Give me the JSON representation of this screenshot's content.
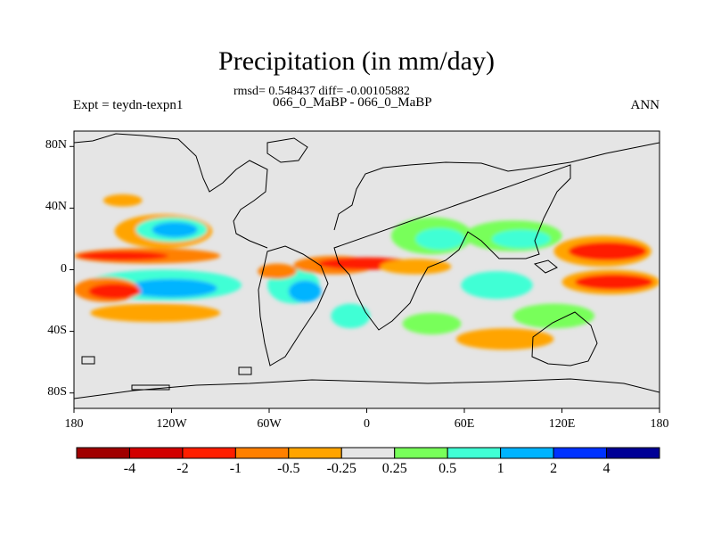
{
  "title": "Precipitation (in mm/day)",
  "subtitle_stats": "rmsd= 0.548437 diff= -0.00105882",
  "subtitle_runs": "066_0_MaBP - 066_0_MaBP",
  "experiment_label": "Expt = teydn-texpn1",
  "season_label": "ANN",
  "map": {
    "projection": "cylindrical-equidistant",
    "lon_range": [
      -180,
      180
    ],
    "lat_range": [
      -90,
      90
    ],
    "lat_ticks": [
      {
        "value": 80,
        "label": "80N"
      },
      {
        "value": 40,
        "label": "40N"
      },
      {
        "value": 0,
        "label": "0"
      },
      {
        "value": -40,
        "label": "40S"
      },
      {
        "value": -80,
        "label": "80S"
      }
    ],
    "lon_ticks": [
      {
        "value": -180,
        "label": "180"
      },
      {
        "value": -120,
        "label": "120W"
      },
      {
        "value": -60,
        "label": "60W"
      },
      {
        "value": 0,
        "label": "0"
      },
      {
        "value": 60,
        "label": "60E"
      },
      {
        "value": 120,
        "label": "120E"
      },
      {
        "value": 180,
        "label": "180"
      }
    ],
    "background_color": "#e5e5e5",
    "anomaly_regions": [
      {
        "lon": -125,
        "lat": 25,
        "rlon": 30,
        "rlat": 11,
        "color": "#ffa400"
      },
      {
        "lon": -120,
        "lat": 26,
        "rlon": 22,
        "rlat": 8,
        "color": "#40ffd5"
      },
      {
        "lon": -118,
        "lat": 26,
        "rlon": 14,
        "rlat": 5,
        "color": "#00b4ff"
      },
      {
        "lon": -135,
        "lat": 9,
        "rlon": 45,
        "rlat": 5,
        "color": "#ff8000"
      },
      {
        "lon": -150,
        "lat": 9,
        "rlon": 28,
        "rlat": 3,
        "color": "#ff1e00"
      },
      {
        "lon": -125,
        "lat": -10,
        "rlon": 48,
        "rlat": 10,
        "color": "#40ffd5"
      },
      {
        "lon": -120,
        "lat": -12,
        "rlon": 28,
        "rlat": 6,
        "color": "#00b4ff"
      },
      {
        "lon": -160,
        "lat": -13,
        "rlon": 20,
        "rlat": 8,
        "color": "#ff8000"
      },
      {
        "lon": -155,
        "lat": -14,
        "rlon": 16,
        "rlat": 5,
        "color": "#ff1e00"
      },
      {
        "lon": -130,
        "lat": -28,
        "rlon": 40,
        "rlat": 6,
        "color": "#ffa400"
      },
      {
        "lon": -45,
        "lat": -10,
        "rlon": 16,
        "rlat": 12,
        "color": "#40ffd5"
      },
      {
        "lon": -38,
        "lat": -14,
        "rlon": 10,
        "rlat": 7,
        "color": "#00b4ff"
      },
      {
        "lon": -55,
        "lat": -1,
        "rlon": 12,
        "rlat": 5,
        "color": "#ff8000"
      },
      {
        "lon": -20,
        "lat": 3,
        "rlon": 25,
        "rlat": 6,
        "color": "#ff8000"
      },
      {
        "lon": 0,
        "lat": 4,
        "rlon": 30,
        "rlat": 4,
        "color": "#ff1e00"
      },
      {
        "lon": 30,
        "lat": 2,
        "rlon": 22,
        "rlat": 5,
        "color": "#ffa400"
      },
      {
        "lon": 40,
        "lat": 22,
        "rlon": 25,
        "rlat": 12,
        "color": "#78ff5a"
      },
      {
        "lon": 45,
        "lat": 20,
        "rlon": 15,
        "rlat": 7,
        "color": "#40ffd5"
      },
      {
        "lon": 90,
        "lat": 22,
        "rlon": 30,
        "rlat": 10,
        "color": "#78ff5a"
      },
      {
        "lon": 95,
        "lat": 20,
        "rlon": 18,
        "rlat": 6,
        "color": "#40ffd5"
      },
      {
        "lon": 145,
        "lat": 12,
        "rlon": 30,
        "rlat": 10,
        "color": "#ffa400"
      },
      {
        "lon": 148,
        "lat": 12,
        "rlon": 24,
        "rlat": 6,
        "color": "#ff1e00"
      },
      {
        "lon": 150,
        "lat": -8,
        "rlon": 30,
        "rlat": 8,
        "color": "#ffa400"
      },
      {
        "lon": 152,
        "lat": -8,
        "rlon": 24,
        "rlat": 5,
        "color": "#ff1e00"
      },
      {
        "lon": 80,
        "lat": -10,
        "rlon": 22,
        "rlat": 9,
        "color": "#40ffd5"
      },
      {
        "lon": 85,
        "lat": -45,
        "rlon": 30,
        "rlat": 7,
        "color": "#ffa400"
      },
      {
        "lon": 115,
        "lat": -30,
        "rlon": 25,
        "rlat": 8,
        "color": "#78ff5a"
      },
      {
        "lon": 40,
        "lat": -35,
        "rlon": 18,
        "rlat": 7,
        "color": "#78ff5a"
      },
      {
        "lon": -10,
        "lat": -30,
        "rlon": 12,
        "rlat": 8,
        "color": "#40ffd5"
      },
      {
        "lon": -150,
        "lat": 45,
        "rlon": 12,
        "rlat": 4,
        "color": "#ffa400"
      }
    ]
  },
  "colorbar": {
    "colors": [
      "#a00000",
      "#d20000",
      "#ff1e00",
      "#ff8000",
      "#ffa400",
      "#e5e5e5",
      "#78ff5a",
      "#40ffd5",
      "#00b4ff",
      "#0032ff",
      "#000096"
    ],
    "labels": [
      {
        "boundary": 1,
        "text": "-4"
      },
      {
        "boundary": 2,
        "text": "-2"
      },
      {
        "boundary": 3,
        "text": "-1"
      },
      {
        "boundary": 4,
        "text": "-0.5"
      },
      {
        "boundary": 5,
        "text": "-0.25"
      },
      {
        "boundary": 6,
        "text": "0.25"
      },
      {
        "boundary": 7,
        "text": "0.5"
      },
      {
        "boundary": 8,
        "text": "1"
      },
      {
        "boundary": 9,
        "text": "2"
      },
      {
        "boundary": 10,
        "text": "4"
      }
    ]
  }
}
